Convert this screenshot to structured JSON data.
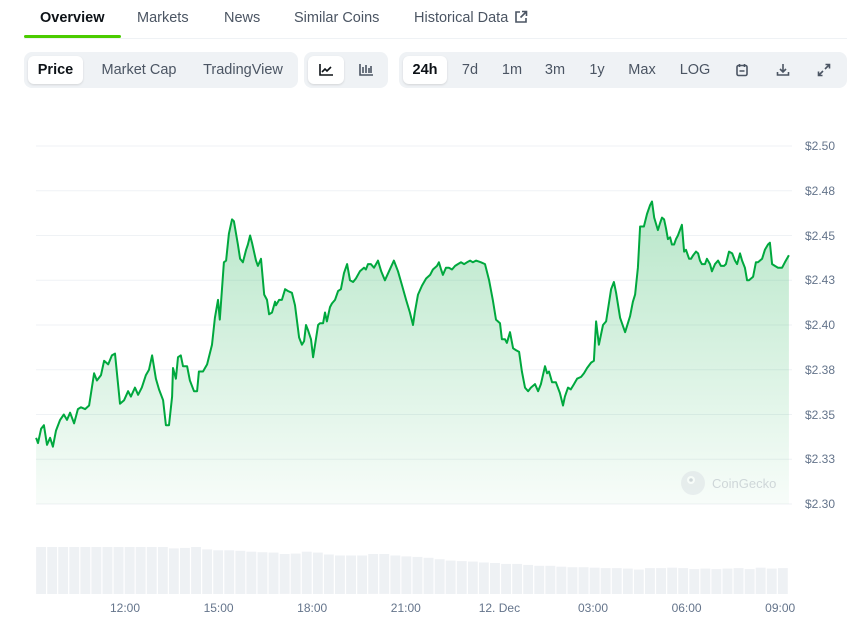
{
  "tabs": [
    {
      "label": "Overview",
      "active": true
    },
    {
      "label": "Markets"
    },
    {
      "label": "News"
    },
    {
      "label": "Similar Coins"
    },
    {
      "label": "Historical Data",
      "icon": "external-link-icon"
    }
  ],
  "toolbar": {
    "chart_types": [
      {
        "label": "Price",
        "active": true
      },
      {
        "label": "Market Cap"
      },
      {
        "label": "TradingView"
      }
    ],
    "views": [
      {
        "icon": "line-chart-icon",
        "active": true
      },
      {
        "icon": "candlestick-chart-icon"
      }
    ],
    "ranges": [
      {
        "label": "24h",
        "active": true
      },
      {
        "label": "7d"
      },
      {
        "label": "1m"
      },
      {
        "label": "3m"
      },
      {
        "label": "1y"
      },
      {
        "label": "Max"
      },
      {
        "label": "LOG"
      }
    ],
    "actions": [
      {
        "icon": "calendar-icon"
      },
      {
        "icon": "download-icon"
      },
      {
        "icon": "expand-icon"
      }
    ]
  },
  "watermark": "CoinGecko",
  "colors": {
    "line": "#00a83e",
    "accent": "#4bcc00",
    "grid": "#eff2f5",
    "volume": "#eef1f4"
  },
  "chart_data": {
    "type": "area",
    "title": "",
    "xlabel": "",
    "ylabel": "",
    "y_unit": "USD",
    "ylim": [
      2.3,
      2.5
    ],
    "xlim_hours": [
      9.15,
      33.4
    ],
    "grid": true,
    "y_ticks": [
      "$2.50",
      "$2.48",
      "$2.45",
      "$2.43",
      "$2.40",
      "$2.38",
      "$2.35",
      "$2.33",
      "$2.30"
    ],
    "y_tick_values": [
      2.5,
      2.475,
      2.45,
      2.425,
      2.4,
      2.375,
      2.35,
      2.325,
      2.3
    ],
    "x_ticks": [
      "12:00",
      "15:00",
      "18:00",
      "21:00",
      "12. Dec",
      "03:00",
      "06:00",
      "09:00"
    ],
    "x_tick_hours": [
      12,
      15,
      18,
      21,
      24,
      27,
      30,
      33
    ],
    "series": [
      {
        "name": "Price",
        "x_hours": [
          9.15,
          9.21,
          9.31,
          9.4,
          9.5,
          9.6,
          9.69,
          9.79,
          9.92,
          10.04,
          10.14,
          10.24,
          10.37,
          10.49,
          10.59,
          10.72,
          10.85,
          11.01,
          11.1,
          11.23,
          11.33,
          11.46,
          11.58,
          11.68,
          11.84,
          11.97,
          12.1,
          12.19,
          12.32,
          12.42,
          12.54,
          12.67,
          12.77,
          12.87,
          12.99,
          13.09,
          13.22,
          13.31,
          13.41,
          13.51,
          13.54,
          13.63,
          13.7,
          13.79,
          13.86,
          13.99,
          14.08,
          14.21,
          14.31,
          14.37,
          14.5,
          14.63,
          14.79,
          14.88,
          14.98,
          15.04,
          15.17,
          15.24,
          15.33,
          15.43,
          15.49,
          15.62,
          15.69,
          15.78,
          15.88,
          15.94,
          16.01,
          16.07,
          16.2,
          16.26,
          16.36,
          16.46,
          16.55,
          16.62,
          16.71,
          16.81,
          16.84,
          16.94,
          17.03,
          17.13,
          17.22,
          17.35,
          17.45,
          17.58,
          17.67,
          17.74,
          17.8,
          17.87,
          17.96,
          18.03,
          18.12,
          18.19,
          18.25,
          18.35,
          18.41,
          18.47,
          18.57,
          18.63,
          18.73,
          18.83,
          18.92,
          19.02,
          19.12,
          19.21,
          19.31,
          19.4,
          19.53,
          19.66,
          19.72,
          19.79,
          19.88,
          19.98,
          20.11,
          20.21,
          20.33,
          20.46,
          20.62,
          20.75,
          20.88,
          21.01,
          21.13,
          21.23,
          21.29,
          21.39,
          21.52,
          21.65,
          21.78,
          21.87,
          22.0,
          22.06,
          22.13,
          22.19,
          22.29,
          22.38,
          22.48,
          22.58,
          22.67,
          22.77,
          22.87,
          22.96,
          23.06,
          23.15,
          23.25,
          23.41,
          23.54,
          23.67,
          23.79,
          23.89,
          24.02,
          24.08,
          24.18,
          24.24,
          24.34,
          24.44,
          24.53,
          24.63,
          24.72,
          24.82,
          24.92,
          25.01,
          25.14,
          25.24,
          25.33,
          25.46,
          25.53,
          25.59,
          25.69,
          25.75,
          25.81,
          25.94,
          26.04,
          26.1,
          26.2,
          26.29,
          26.39,
          26.49,
          26.62,
          26.71,
          26.81,
          26.94,
          27.03,
          27.1,
          27.19,
          27.32,
          27.42,
          27.58,
          27.67,
          27.74,
          27.87,
          28.03,
          28.19,
          28.28,
          28.35,
          28.44,
          28.51,
          28.63,
          28.73,
          28.83,
          28.89,
          28.96,
          29.08,
          29.15,
          29.21,
          29.28,
          29.34,
          29.4,
          29.47,
          29.53,
          29.6,
          29.66,
          29.72,
          29.85,
          29.92,
          29.98,
          30.08,
          30.14,
          30.21,
          30.3,
          30.37,
          30.43,
          30.49,
          30.59,
          30.65,
          30.75,
          30.81,
          30.91,
          31.01,
          31.1,
          31.2,
          31.26,
          31.36,
          31.46,
          31.55,
          31.62,
          31.71,
          31.78,
          31.87,
          31.94,
          32.0,
          32.13,
          32.22,
          32.29,
          32.42,
          32.51,
          32.61,
          32.67,
          32.74,
          32.83,
          32.93,
          32.99,
          33.06,
          33.15,
          33.28
        ],
        "price": [
          2.337,
          2.334,
          2.342,
          2.344,
          2.333,
          2.337,
          2.332,
          2.341,
          2.347,
          2.35,
          2.347,
          2.351,
          2.345,
          2.353,
          2.354,
          2.353,
          2.355,
          2.373,
          2.369,
          2.372,
          2.38,
          2.378,
          2.383,
          2.384,
          2.356,
          2.358,
          2.363,
          2.36,
          2.365,
          2.361,
          2.365,
          2.372,
          2.375,
          2.383,
          2.37,
          2.364,
          2.358,
          2.344,
          2.344,
          2.36,
          2.376,
          2.37,
          2.382,
          2.383,
          2.377,
          2.377,
          2.369,
          2.363,
          2.363,
          2.374,
          2.374,
          2.378,
          2.389,
          2.404,
          2.414,
          2.403,
          2.435,
          2.436,
          2.451,
          2.459,
          2.458,
          2.445,
          2.437,
          2.435,
          2.442,
          2.445,
          2.45,
          2.446,
          2.436,
          2.433,
          2.437,
          2.417,
          2.414,
          2.406,
          2.407,
          2.413,
          2.411,
          2.414,
          2.414,
          2.42,
          2.419,
          2.418,
          2.411,
          2.393,
          2.389,
          2.391,
          2.4,
          2.397,
          2.392,
          2.382,
          2.392,
          2.4,
          2.401,
          2.401,
          2.407,
          2.402,
          2.41,
          2.412,
          2.414,
          2.419,
          2.42,
          2.429,
          2.434,
          2.425,
          2.424,
          2.426,
          2.43,
          2.432,
          2.431,
          2.434,
          2.434,
          2.432,
          2.436,
          2.43,
          2.425,
          2.43,
          2.436,
          2.43,
          2.422,
          2.414,
          2.407,
          2.4,
          2.407,
          2.417,
          2.422,
          2.426,
          2.428,
          2.431,
          2.433,
          2.435,
          2.431,
          2.428,
          2.432,
          2.432,
          2.431,
          2.433,
          2.434,
          2.435,
          2.434,
          2.435,
          2.436,
          2.435,
          2.436,
          2.435,
          2.434,
          2.425,
          2.414,
          2.403,
          2.401,
          2.392,
          2.392,
          2.39,
          2.396,
          2.387,
          2.386,
          2.385,
          2.374,
          2.365,
          2.363,
          2.365,
          2.367,
          2.363,
          2.367,
          2.377,
          2.373,
          2.374,
          2.368,
          2.368,
          2.368,
          2.362,
          2.355,
          2.36,
          2.365,
          2.364,
          2.367,
          2.37,
          2.371,
          2.373,
          2.376,
          2.379,
          2.38,
          2.402,
          2.389,
          2.4,
          2.402,
          2.42,
          2.424,
          2.418,
          2.404,
          2.396,
          2.405,
          2.413,
          2.417,
          2.432,
          2.455,
          2.455,
          2.462,
          2.467,
          2.469,
          2.46,
          2.453,
          2.457,
          2.46,
          2.459,
          2.454,
          2.448,
          2.449,
          2.445,
          2.445,
          2.448,
          2.45,
          2.456,
          2.441,
          2.442,
          2.437,
          2.437,
          2.439,
          2.441,
          2.44,
          2.436,
          2.434,
          2.434,
          2.437,
          2.434,
          2.43,
          2.434,
          2.436,
          2.433,
          2.433,
          2.434,
          2.441,
          2.44,
          2.436,
          2.434,
          2.44,
          2.436,
          2.432,
          2.425,
          2.425,
          2.427,
          2.435,
          2.435,
          2.437,
          2.442,
          2.445,
          2.446,
          2.434,
          2.433,
          2.432,
          2.432,
          2.432,
          2.435,
          2.439
        ]
      }
    ],
    "volume_relative": [
      1.0,
      1.0,
      1.0,
      1.0,
      1.0,
      1.0,
      1.0,
      1.0,
      1.0,
      1.0,
      1.0,
      1.0,
      0.97,
      0.98,
      1.0,
      0.95,
      0.93,
      0.93,
      0.92,
      0.9,
      0.89,
      0.88,
      0.85,
      0.86,
      0.9,
      0.88,
      0.84,
      0.82,
      0.82,
      0.82,
      0.85,
      0.85,
      0.82,
      0.8,
      0.79,
      0.77,
      0.74,
      0.71,
      0.7,
      0.69,
      0.67,
      0.66,
      0.64,
      0.64,
      0.62,
      0.6,
      0.6,
      0.58,
      0.57,
      0.57,
      0.56,
      0.55,
      0.55,
      0.54,
      0.52,
      0.55,
      0.55,
      0.56,
      0.55,
      0.53,
      0.54,
      0.53,
      0.54,
      0.55,
      0.53,
      0.56,
      0.54,
      0.55
    ]
  }
}
